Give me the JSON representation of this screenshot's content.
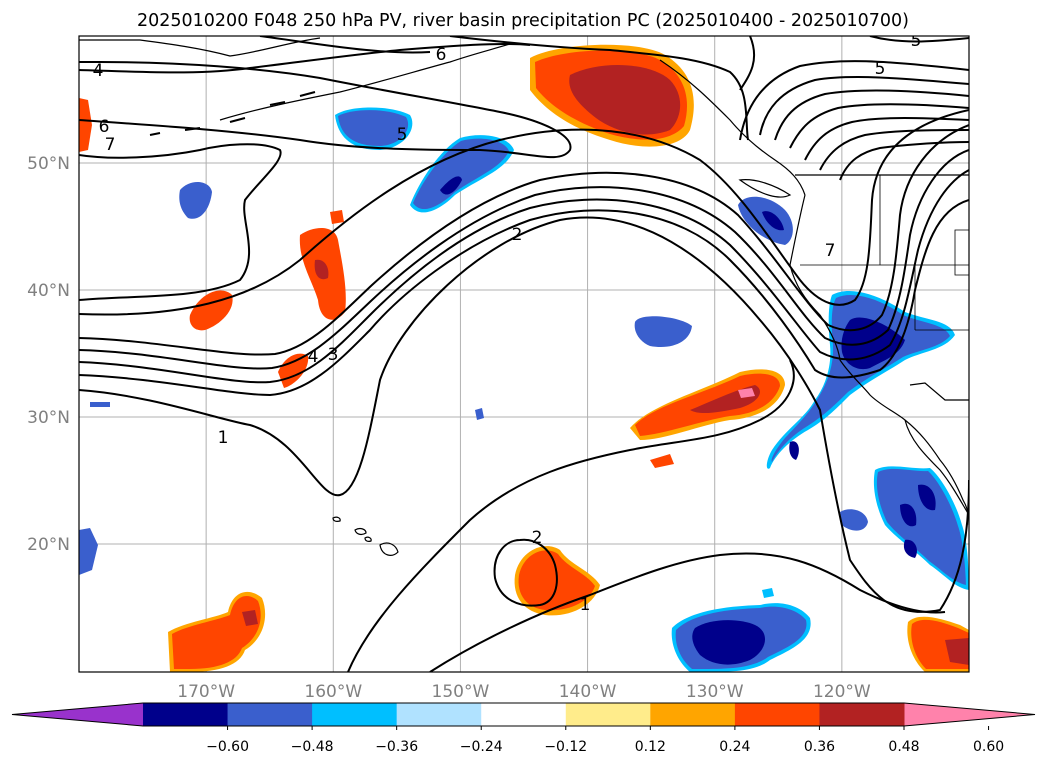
{
  "title": "2025010200 F048 250 hPa PV, river basin precipitation PC (2025010400 - 2025010700)",
  "map": {
    "lon_ticks": [
      {
        "lon": -170,
        "label": "170°W"
      },
      {
        "lon": -160,
        "label": "160°W"
      },
      {
        "lon": -150,
        "label": "150°W"
      },
      {
        "lon": -140,
        "label": "140°W"
      },
      {
        "lon": -130,
        "label": "130°W"
      },
      {
        "lon": -120,
        "label": "120°W"
      }
    ],
    "lat_ticks": [
      {
        "lat": 50,
        "label": "50°N"
      },
      {
        "lat": 40,
        "label": "40°N"
      },
      {
        "lat": 30,
        "label": "30°N"
      },
      {
        "lat": 20,
        "label": "20°N"
      }
    ],
    "extent": {
      "lon": [
        -180,
        -110
      ],
      "lat": [
        10,
        60
      ]
    },
    "grid": true,
    "pv_contour_labels": [
      "4",
      "6",
      "6",
      "7",
      "5",
      "2",
      "4",
      "3",
      "1",
      "2",
      "1",
      "5",
      "5",
      "7"
    ]
  },
  "colorbar": {
    "ticks": [
      "−0.60",
      "−0.48",
      "−0.36",
      "−0.24",
      "−0.12",
      "0.12",
      "0.24",
      "0.36",
      "0.48",
      "0.60"
    ],
    "extend": "both",
    "colors": [
      "#9932cc",
      "#00008b",
      "#3a5fcd",
      "#00bfff",
      "#b0e2ff",
      "#ffffff",
      "#ffec8b",
      "#ffa500",
      "#ff4500",
      "#b22222",
      "#ff82ab"
    ]
  }
}
